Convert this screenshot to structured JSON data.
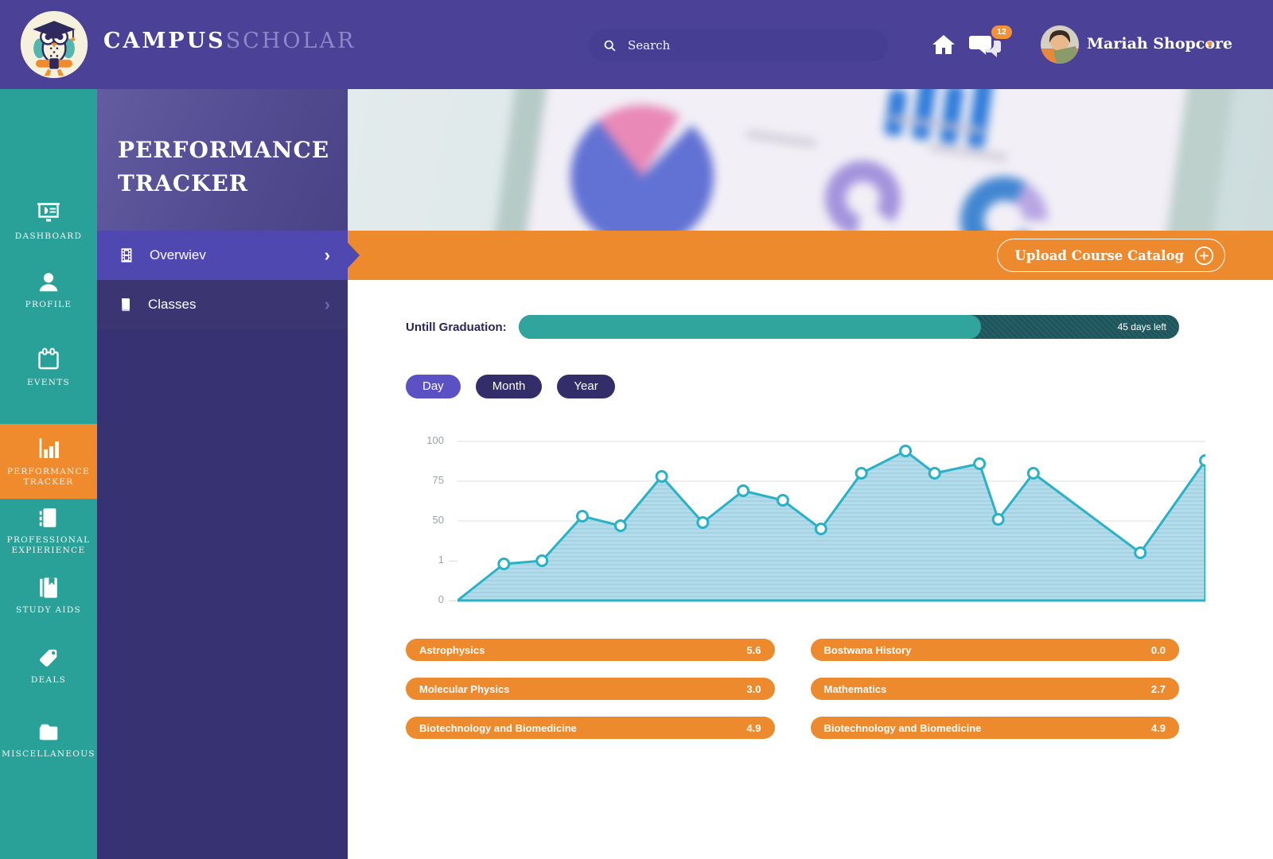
{
  "header": {
    "brand_primary": "CAMPUS",
    "brand_secondary": "SCHOLAR",
    "search": {
      "placeholder": "Search"
    },
    "notifications_count": "12",
    "user_name": "Mariah Shopcore"
  },
  "left_nav": {
    "items": [
      {
        "label": "DASHBOARD",
        "icon": "dashboard-icon",
        "active": false
      },
      {
        "label": "PROFILE",
        "icon": "profile-icon",
        "active": false
      },
      {
        "label": "EVENTS",
        "icon": "events-icon",
        "active": false
      },
      {
        "label": "PERFORMANCE TRACKER",
        "icon": "performance-icon",
        "active": true
      },
      {
        "label": "PROFESSIONAL EXPIERIENCE",
        "icon": "experience-icon",
        "active": false
      },
      {
        "label": "STUDY AIDS",
        "icon": "study-aids-icon",
        "active": false
      },
      {
        "label": "DEALS",
        "icon": "deals-icon",
        "active": false
      },
      {
        "label": "MISCELLANEOUS",
        "icon": "miscellaneous-icon",
        "active": false
      }
    ]
  },
  "submenu": {
    "title": "PERFORMANCE TRACKER",
    "items": [
      {
        "label": "Overwiev",
        "icon": "overview-icon",
        "active": true
      },
      {
        "label": "Classes",
        "icon": "classes-icon",
        "active": false
      }
    ]
  },
  "toolbar": {
    "upload_button_label": "Upload Course Catalog"
  },
  "graduation": {
    "label": "Untill Graduation:",
    "days_left": "45 days left",
    "progress_pct": 70
  },
  "period_tabs": [
    {
      "label": "Day",
      "active": true
    },
    {
      "label": "Month",
      "active": false
    },
    {
      "label": "Year",
      "active": false
    }
  ],
  "chart_data": {
    "type": "area",
    "title": "",
    "xlabel": "",
    "ylabel": "",
    "grid": true,
    "y_scale_note": "axis as drawn is non-linear: tick labels 100/75/50/1/0 are evenly spaced; level_pct is the drawn height in % of plot area",
    "yticks": [
      {
        "label": "100",
        "level_pct": 100,
        "full_line": true
      },
      {
        "label": "75",
        "level_pct": 75,
        "full_line": true
      },
      {
        "label": "50",
        "level_pct": 50,
        "full_line": true
      },
      {
        "label": "1",
        "level_pct": 25,
        "full_line": false
      },
      {
        "label": "0",
        "level_pct": 0,
        "full_line": false
      }
    ],
    "points": [
      {
        "x_pct": 0,
        "level_pct": 0,
        "marker": false
      },
      {
        "x_pct": 6.2,
        "level_pct": 23,
        "marker": true
      },
      {
        "x_pct": 11.3,
        "level_pct": 25,
        "marker": true
      },
      {
        "x_pct": 16.7,
        "level_pct": 53,
        "marker": true
      },
      {
        "x_pct": 21.8,
        "level_pct": 47,
        "marker": true
      },
      {
        "x_pct": 27.3,
        "level_pct": 78,
        "marker": true
      },
      {
        "x_pct": 32.8,
        "level_pct": 49,
        "marker": true
      },
      {
        "x_pct": 38.2,
        "level_pct": 69,
        "marker": true
      },
      {
        "x_pct": 43.5,
        "level_pct": 63,
        "marker": true
      },
      {
        "x_pct": 48.6,
        "level_pct": 45,
        "marker": true
      },
      {
        "x_pct": 54.0,
        "level_pct": 80,
        "marker": true
      },
      {
        "x_pct": 59.9,
        "level_pct": 94,
        "marker": true
      },
      {
        "x_pct": 63.8,
        "level_pct": 80,
        "marker": true
      },
      {
        "x_pct": 69.8,
        "level_pct": 86,
        "marker": true
      },
      {
        "x_pct": 72.3,
        "level_pct": 51,
        "marker": true
      },
      {
        "x_pct": 77.0,
        "level_pct": 80,
        "marker": true
      },
      {
        "x_pct": 91.3,
        "level_pct": 30,
        "marker": true
      },
      {
        "x_pct": 100,
        "level_pct": 88,
        "marker": true
      }
    ],
    "line_color": "#29b1c6",
    "fill_color": "#b3dbe9"
  },
  "courses": {
    "left": [
      {
        "name": "Astrophysics",
        "score": "5.6"
      },
      {
        "name": "Molecular Physics",
        "score": "3.0"
      },
      {
        "name": "Biotechnology and Biomedicine",
        "score": "4.9"
      }
    ],
    "right": [
      {
        "name": "Bostwana History",
        "score": "0.0"
      },
      {
        "name": "Mathematics",
        "score": "2.7"
      },
      {
        "name": "Biotechnology and Biomedicine",
        "score": "4.9"
      }
    ]
  },
  "colors": {
    "header_purple": "#4b4197",
    "rail_teal": "#2aa198",
    "accent_orange": "#ee8a2e",
    "active_menu_purple": "#4f48b0",
    "panel_purple": "#373272",
    "progress_track": "#1c565c",
    "progress_fill": "#30a59e",
    "tab_active": "#5b50c4",
    "tab_inactive": "#332d69",
    "chart_line": "#29b1c6",
    "chart_fill": "#b3dbe9"
  }
}
